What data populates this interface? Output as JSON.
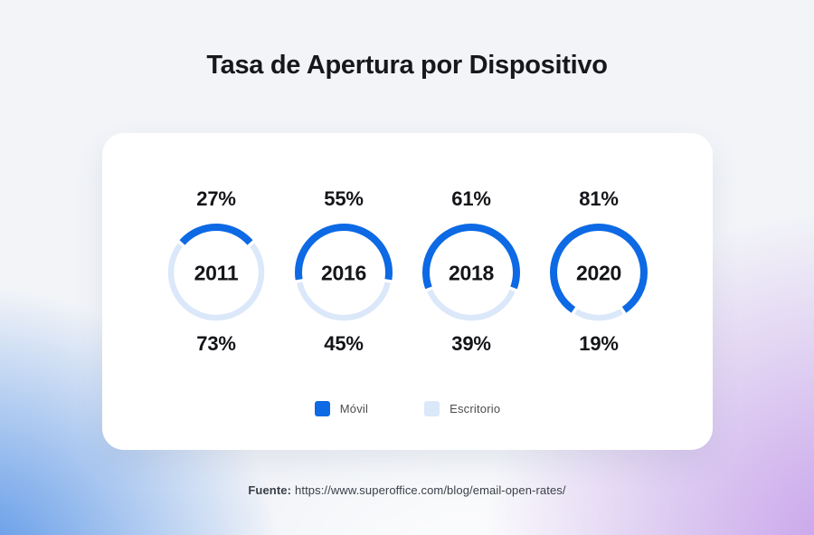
{
  "chart_data": {
    "type": "donut",
    "title": "Tasa de Apertura por Dispositivo",
    "categories": [
      "2011",
      "2016",
      "2018",
      "2020"
    ],
    "series": [
      {
        "name": "Móvil",
        "color": "#0d69e4",
        "values": [
          27,
          55,
          61,
          81
        ]
      },
      {
        "name": "Escritorio",
        "color": "#dbe8f9",
        "values": [
          73,
          45,
          39,
          19
        ]
      }
    ],
    "value_suffix": "%",
    "legend_position": "bottom",
    "value_label_positions": {
      "mobile": "above-ring",
      "desktop": "below-ring"
    }
  },
  "footer": {
    "source_label": "Fuente:",
    "source_url": "https://www.superoffice.com/blog/email-open-rates/"
  },
  "theme": {
    "accent_blue": "#0d69e4",
    "light_blue": "#dbe8f9",
    "background_blue": "#5794e7",
    "background_purple": "#c7a0ea",
    "background_base": "#f2f4f8",
    "card_background": "#ffffff",
    "text_dark": "#141519"
  }
}
